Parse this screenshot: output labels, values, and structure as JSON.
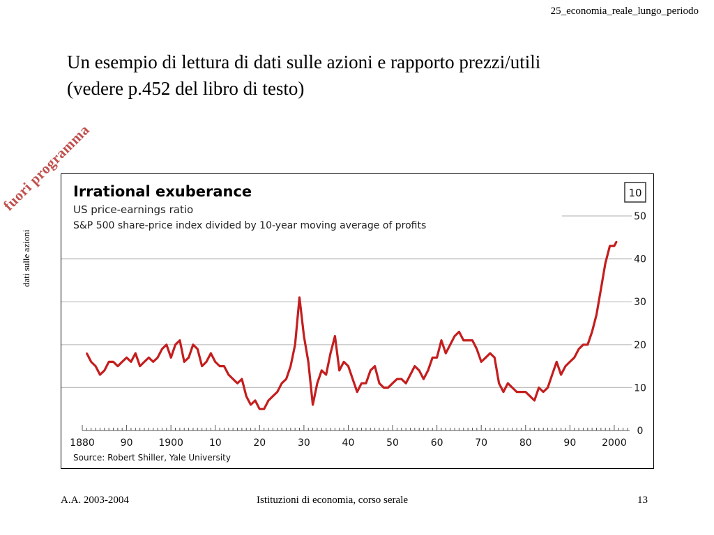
{
  "header": {
    "reference": "25_economia_reale_lungo_periodo"
  },
  "slide": {
    "title_line1": "Un esempio di lettura di dati sulle azioni e rapporto prezzi/utili",
    "title_line2": "(vedere p.452 del libro di testo)",
    "stamp": "fuori programma",
    "side_label": "dati sulle azioni"
  },
  "footer": {
    "left": "A.A. 2003-2004",
    "center": "Istituzioni di economia, corso serale",
    "page": "13"
  },
  "colors": {
    "series": "#c41e1e",
    "grid": "#bdbdbd",
    "stamp": "#c0504d"
  },
  "chart_data": {
    "type": "line",
    "title": "Irrational exuberance",
    "subtitle": "US price-earnings ratio",
    "subtitle2": "S&P 500 share-price index divided by 10-year moving average of profits",
    "badge": "10",
    "source": "Source: Robert Shiller, Yale University",
    "xlim": [
      1880,
      2003
    ],
    "ylim": [
      0,
      50
    ],
    "x_ticks": [
      1880,
      1890,
      1900,
      1910,
      1920,
      1930,
      1940,
      1950,
      1960,
      1970,
      1980,
      1990,
      2000
    ],
    "x_tick_labels": [
      "1880",
      "90",
      "1900",
      "10",
      "20",
      "30",
      "40",
      "50",
      "60",
      "70",
      "80",
      "90",
      "2000"
    ],
    "y_ticks": [
      0,
      10,
      20,
      30,
      40,
      50
    ],
    "y_tick_labels": [
      "0",
      "10",
      "20",
      "30",
      "40",
      "50"
    ],
    "grid": true,
    "y_axis_side": "right",
    "series": [
      {
        "values": [
          [
            1881,
            18
          ],
          [
            1882,
            16
          ],
          [
            1883,
            15
          ],
          [
            1884,
            13
          ],
          [
            1885,
            14
          ],
          [
            1886,
            16
          ],
          [
            1887,
            16
          ],
          [
            1888,
            15
          ],
          [
            1889,
            16
          ],
          [
            1890,
            17
          ],
          [
            1891,
            16
          ],
          [
            1892,
            18
          ],
          [
            1893,
            15
          ],
          [
            1894,
            16
          ],
          [
            1895,
            17
          ],
          [
            1896,
            16
          ],
          [
            1897,
            17
          ],
          [
            1898,
            19
          ],
          [
            1899,
            20
          ],
          [
            1900,
            17
          ],
          [
            1901,
            20
          ],
          [
            1902,
            21
          ],
          [
            1903,
            16
          ],
          [
            1904,
            17
          ],
          [
            1905,
            20
          ],
          [
            1906,
            19
          ],
          [
            1907,
            15
          ],
          [
            1908,
            16
          ],
          [
            1909,
            18
          ],
          [
            1910,
            16
          ],
          [
            1911,
            15
          ],
          [
            1912,
            15
          ],
          [
            1913,
            13
          ],
          [
            1914,
            12
          ],
          [
            1915,
            11
          ],
          [
            1916,
            12
          ],
          [
            1917,
            8
          ],
          [
            1918,
            6
          ],
          [
            1919,
            7
          ],
          [
            1920,
            5
          ],
          [
            1921,
            5
          ],
          [
            1922,
            7
          ],
          [
            1923,
            8
          ],
          [
            1924,
            9
          ],
          [
            1925,
            11
          ],
          [
            1926,
            12
          ],
          [
            1927,
            15
          ],
          [
            1928,
            20
          ],
          [
            1929,
            31
          ],
          [
            1930,
            22
          ],
          [
            1931,
            16
          ],
          [
            1932,
            6
          ],
          [
            1933,
            11
          ],
          [
            1934,
            14
          ],
          [
            1935,
            13
          ],
          [
            1936,
            18
          ],
          [
            1937,
            22
          ],
          [
            1938,
            14
          ],
          [
            1939,
            16
          ],
          [
            1940,
            15
          ],
          [
            1941,
            12
          ],
          [
            1942,
            9
          ],
          [
            1943,
            11
          ],
          [
            1944,
            11
          ],
          [
            1945,
            14
          ],
          [
            1946,
            15
          ],
          [
            1947,
            11
          ],
          [
            1948,
            10
          ],
          [
            1949,
            10
          ],
          [
            1950,
            11
          ],
          [
            1951,
            12
          ],
          [
            1952,
            12
          ],
          [
            1953,
            11
          ],
          [
            1954,
            13
          ],
          [
            1955,
            15
          ],
          [
            1956,
            14
          ],
          [
            1957,
            12
          ],
          [
            1958,
            14
          ],
          [
            1959,
            17
          ],
          [
            1960,
            17
          ],
          [
            1961,
            21
          ],
          [
            1962,
            18
          ],
          [
            1963,
            20
          ],
          [
            1964,
            22
          ],
          [
            1965,
            23
          ],
          [
            1966,
            21
          ],
          [
            1967,
            21
          ],
          [
            1968,
            21
          ],
          [
            1969,
            19
          ],
          [
            1970,
            16
          ],
          [
            1971,
            17
          ],
          [
            1972,
            18
          ],
          [
            1973,
            17
          ],
          [
            1974,
            11
          ],
          [
            1975,
            9
          ],
          [
            1976,
            11
          ],
          [
            1977,
            10
          ],
          [
            1978,
            9
          ],
          [
            1979,
            9
          ],
          [
            1980,
            9
          ],
          [
            1981,
            8
          ],
          [
            1982,
            7
          ],
          [
            1983,
            10
          ],
          [
            1984,
            9
          ],
          [
            1985,
            10
          ],
          [
            1986,
            13
          ],
          [
            1987,
            16
          ],
          [
            1988,
            13
          ],
          [
            1989,
            15
          ],
          [
            1990,
            16
          ],
          [
            1991,
            17
          ],
          [
            1992,
            19
          ],
          [
            1993,
            20
          ],
          [
            1994,
            20
          ],
          [
            1995,
            23
          ],
          [
            1996,
            27
          ],
          [
            1997,
            33
          ],
          [
            1998,
            39
          ],
          [
            1999,
            43
          ],
          [
            2000,
            43
          ],
          [
            2000.5,
            44
          ]
        ]
      }
    ]
  }
}
